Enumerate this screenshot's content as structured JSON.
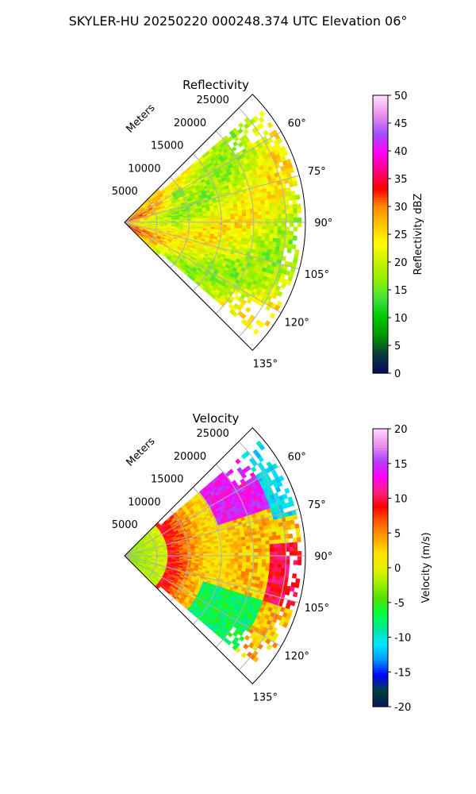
{
  "figure_title": "SKYLER-HU  20250220  000248.374 UTC Elevation 06°",
  "chart_data": [
    {
      "type": "heatmap",
      "subtype": "polar-sector",
      "title": "Reflectivity",
      "radial_label": "Meters",
      "radial_ticks": [
        "5000",
        "10000",
        "15000",
        "20000",
        "25000"
      ],
      "radial_tick_values": [
        5000,
        10000,
        15000,
        20000,
        25000
      ],
      "angle_ticks": [
        "60°",
        "75°",
        "90°",
        "105°",
        "120°",
        "135°"
      ],
      "angle_tick_values": [
        60,
        75,
        90,
        105,
        120,
        135
      ],
      "theta_range": [
        45,
        135
      ],
      "r_range": [
        0,
        28000
      ],
      "grid": true,
      "colorbar": {
        "label": "Reflectivity dBZ",
        "range": [
          0,
          50
        ],
        "ticks": [
          "0",
          "5",
          "10",
          "15",
          "20",
          "25",
          "30",
          "35",
          "40",
          "45",
          "50"
        ],
        "tick_values": [
          0,
          5,
          10,
          15,
          20,
          25,
          30,
          35,
          40,
          45,
          50
        ],
        "colormap": "NWSRef"
      },
      "field_summary": {
        "dominant_values": [
          20,
          26
        ],
        "near_radar_values": [
          27,
          32
        ],
        "isolated_patch": {
          "value": 14,
          "range_m": 9500,
          "azimuth_deg": 62
        }
      }
    },
    {
      "type": "heatmap",
      "subtype": "polar-sector",
      "title": "Velocity",
      "radial_label": "Meters",
      "radial_ticks": [
        "5000",
        "10000",
        "15000",
        "20000",
        "25000"
      ],
      "radial_tick_values": [
        5000,
        10000,
        15000,
        20000,
        25000
      ],
      "angle_ticks": [
        "60°",
        "75°",
        "90°",
        "105°",
        "120°",
        "135°"
      ],
      "angle_tick_values": [
        60,
        75,
        90,
        105,
        120,
        135
      ],
      "theta_range": [
        45,
        135
      ],
      "r_range": [
        0,
        28000
      ],
      "grid": true,
      "colorbar": {
        "label": "Velocity (m/s)",
        "range": [
          -20,
          20
        ],
        "ticks": [
          "-20",
          "-15",
          "-10",
          "-5",
          "0",
          "5",
          "10",
          "15",
          "20"
        ],
        "tick_values": [
          -20,
          -15,
          -10,
          -5,
          0,
          5,
          10,
          15,
          20
        ],
        "colormap": "NWSVel"
      },
      "field_summary": {
        "near_radar_values": [
          -3,
          0
        ],
        "mid_range_values": [
          6,
          10
        ],
        "far_north_values": [
          12,
          16
        ],
        "outer_edge_values": [
          -12,
          -10
        ],
        "south_edge_values": [
          -9,
          -6
        ]
      }
    }
  ],
  "colors": {
    "reflectivity_stops": [
      "#0b0b5e",
      "#0a3a3a",
      "#009600",
      "#00c800",
      "#40e040",
      "#8cf000",
      "#c8f000",
      "#ffff00",
      "#ffc800",
      "#ff8c00",
      "#ff0000",
      "#ff0080",
      "#ff00ff",
      "#a050ff",
      "#e890e8",
      "#ffd8ff"
    ],
    "velocity_stops": [
      "#0a1a55",
      "#004040",
      "#0000ff",
      "#0096ff",
      "#00e6ff",
      "#00e6a0",
      "#00ff40",
      "#50e000",
      "#a0f000",
      "#e8f000",
      "#ffe000",
      "#ffa000",
      "#ff6000",
      "#ff0000",
      "#ff2080",
      "#ff00ff",
      "#b040ff",
      "#e890e8",
      "#ffd0ff"
    ]
  }
}
